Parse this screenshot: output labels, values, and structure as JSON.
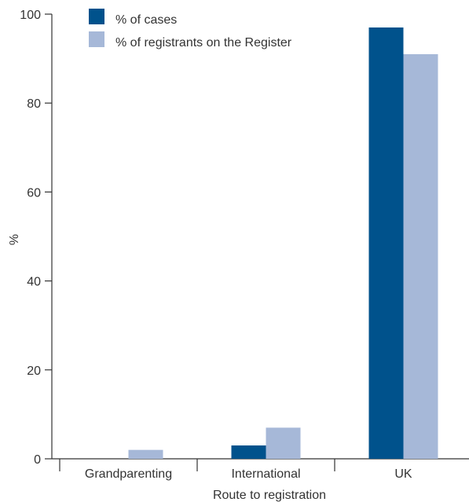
{
  "chart_data": {
    "type": "bar",
    "categories": [
      "Grandparenting",
      "International",
      "UK"
    ],
    "series": [
      {
        "name": "% of cases",
        "color": "#00528c",
        "values": [
          0,
          3,
          97
        ]
      },
      {
        "name": "% of registrants on the Register",
        "color": "#a6b8d8",
        "values": [
          2,
          7,
          91
        ]
      }
    ],
    "xlabel": "Route to registration",
    "ylabel": "%",
    "ylim": [
      0,
      100
    ],
    "yticks": [
      0,
      20,
      40,
      60,
      80,
      100
    ],
    "grid": false,
    "legend_position": "top-left"
  }
}
